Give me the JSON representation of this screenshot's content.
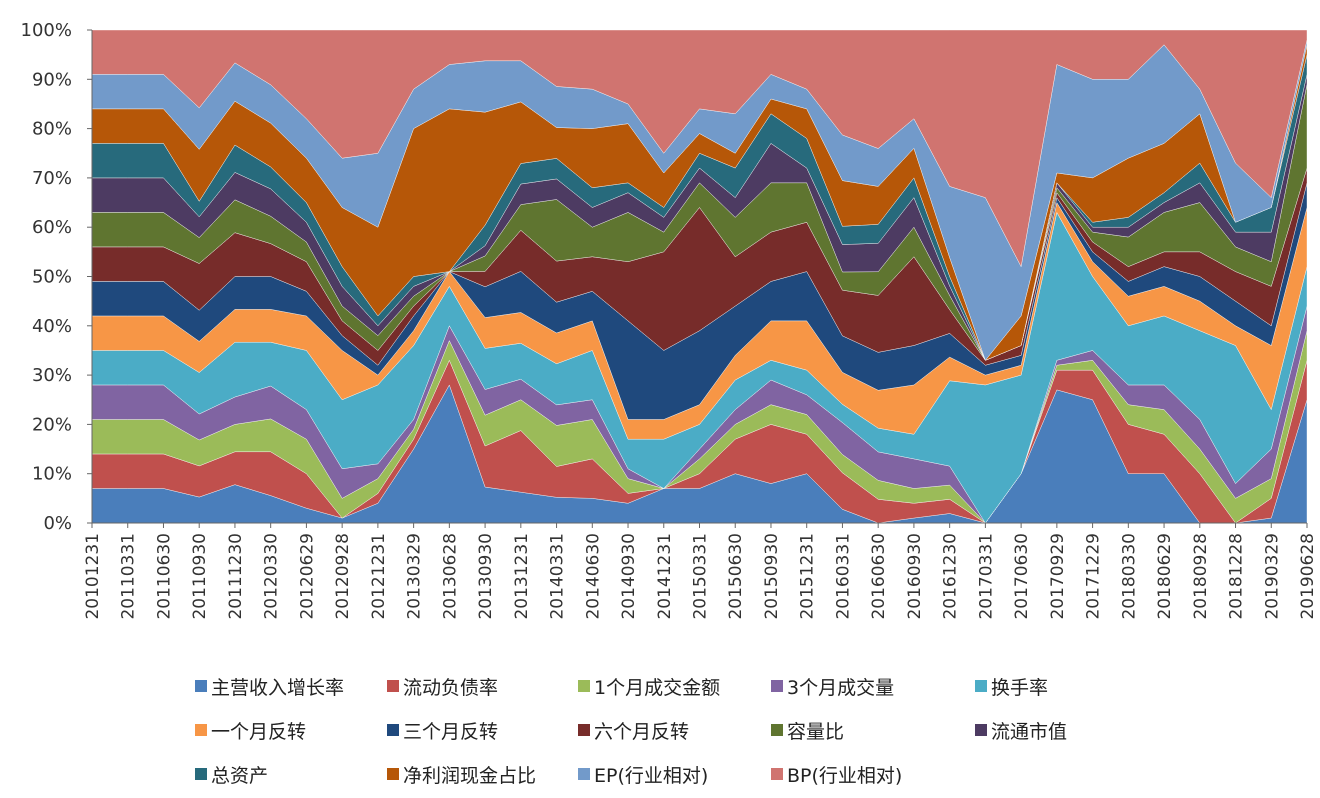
{
  "chart_data": {
    "type": "area",
    "stacked": true,
    "normalized": true,
    "title": "",
    "xlabel": "",
    "ylabel": "",
    "ylim": [
      0,
      100
    ],
    "yticks": [
      "0%",
      "10%",
      "20%",
      "30%",
      "40%",
      "50%",
      "60%",
      "70%",
      "80%",
      "90%",
      "100%"
    ],
    "x_tick_labels": [
      "20101231",
      "20110331",
      "20110630",
      "20110930",
      "20111230",
      "20120330",
      "20120629",
      "20120928",
      "20121231",
      "20130329",
      "20130628",
      "20130930",
      "20131231",
      "20140331",
      "20140630",
      "20140930",
      "20141231",
      "20150331",
      "20150630",
      "20150930",
      "20151231",
      "20160331",
      "20160630",
      "20160930",
      "20161230",
      "20170331",
      "20170630",
      "20170929",
      "20171229",
      "20180330",
      "20180629",
      "20180928",
      "20181228",
      "20190329",
      "20190628"
    ],
    "legend_position": "bottom",
    "x_index": [
      0,
      1,
      2,
      3,
      4,
      5,
      6,
      7,
      8,
      9,
      10,
      11,
      12,
      13,
      14,
      15,
      16,
      17,
      18,
      19,
      20,
      21,
      22,
      23,
      24,
      25,
      26,
      27,
      28,
      29,
      30,
      31,
      32,
      33,
      34
    ],
    "series": [
      {
        "name": "主营收入增长率",
        "color": "#4a7ebb",
        "values": [
          7,
          7,
          7,
          5,
          7,
          5,
          3,
          1,
          4,
          15,
          28,
          7,
          6,
          5,
          5,
          4,
          7,
          7,
          10,
          8,
          10,
          3,
          0,
          1,
          2,
          0,
          10,
          27,
          25,
          10,
          10,
          0,
          0,
          1,
          25
        ]
      },
      {
        "name": "流动负债率",
        "color": "#c0504d",
        "values": [
          7,
          7,
          7,
          6,
          6,
          8,
          7,
          0,
          2,
          2,
          5,
          8,
          12,
          6,
          8,
          2,
          0,
          3,
          7,
          12,
          8,
          8,
          5,
          3,
          3,
          0,
          0,
          4,
          6,
          10,
          8,
          10,
          0,
          4,
          8
        ]
      },
      {
        "name": "1个月成交金额",
        "color": "#9bbb59",
        "values": [
          7,
          7,
          7,
          5,
          5,
          6,
          7,
          4,
          3,
          2,
          4,
          6,
          6,
          8,
          8,
          3,
          0,
          3,
          3,
          4,
          4,
          4,
          4,
          3,
          3,
          0,
          0,
          1,
          2,
          4,
          5,
          5,
          5,
          4,
          6
        ]
      },
      {
        "name": "3个月成交量",
        "color": "#8064a2",
        "values": [
          7,
          7,
          7,
          5,
          5,
          6,
          6,
          6,
          3,
          2,
          3,
          5,
          4,
          4,
          4,
          2,
          0,
          2,
          3,
          5,
          4,
          7,
          6,
          6,
          4,
          0,
          0,
          1,
          2,
          4,
          5,
          6,
          3,
          6,
          5
        ]
      },
      {
        "name": "换手率",
        "color": "#4bacc6",
        "values": [
          7,
          7,
          7,
          8,
          10,
          8,
          12,
          14,
          16,
          15,
          8,
          8,
          7,
          8,
          10,
          6,
          10,
          5,
          6,
          4,
          5,
          4,
          5,
          5,
          18,
          28,
          20,
          30,
          15,
          12,
          14,
          18,
          28,
          8,
          8
        ]
      },
      {
        "name": "一个月反转",
        "color": "#f79646",
        "values": [
          7,
          7,
          7,
          6,
          6,
          6,
          7,
          10,
          2,
          3,
          3,
          6,
          6,
          6,
          6,
          4,
          4,
          4,
          5,
          8,
          10,
          7,
          8,
          10,
          5,
          2,
          2,
          2,
          3,
          6,
          6,
          6,
          4,
          13,
          12
        ]
      },
      {
        "name": "三个月反转",
        "color": "#1f497d",
        "values": [
          7,
          7,
          7,
          6,
          6,
          6,
          5,
          3,
          2,
          3,
          0,
          6,
          8,
          6,
          6,
          20,
          14,
          15,
          10,
          8,
          10,
          8,
          8,
          8,
          5,
          2,
          2,
          1,
          2,
          3,
          4,
          5,
          5,
          4,
          5
        ]
      },
      {
        "name": "六个月反转",
        "color": "#772c2a",
        "values": [
          7,
          7,
          7,
          9,
          8,
          6,
          6,
          3,
          3,
          2,
          0,
          3,
          8,
          8,
          7,
          12,
          20,
          25,
          10,
          10,
          10,
          10,
          12,
          18,
          5,
          1,
          2,
          1,
          2,
          3,
          3,
          5,
          6,
          8,
          3
        ]
      },
      {
        "name": "容量比",
        "color": "#5f7530",
        "values": [
          7,
          7,
          7,
          5,
          6,
          5,
          4,
          3,
          3,
          2,
          0,
          3,
          5,
          12,
          6,
          10,
          4,
          5,
          8,
          10,
          8,
          4,
          5,
          6,
          3,
          0,
          0,
          1,
          2,
          6,
          8,
          10,
          5,
          5,
          17
        ]
      },
      {
        "name": "流通市值",
        "color": "#4d3b62",
        "values": [
          7,
          7,
          7,
          4,
          5,
          5,
          4,
          4,
          2,
          2,
          0,
          2,
          4,
          4,
          4,
          4,
          3,
          3,
          4,
          8,
          3,
          6,
          6,
          6,
          2,
          0,
          0,
          1,
          1,
          2,
          2,
          4,
          3,
          6,
          2
        ]
      },
      {
        "name": "总资产",
        "color": "#276a7c",
        "values": [
          7,
          7,
          7,
          3,
          5,
          4,
          4,
          4,
          2,
          2,
          0,
          4,
          4,
          4,
          4,
          2,
          2,
          3,
          6,
          6,
          6,
          4,
          4,
          4,
          2,
          0,
          0,
          0,
          1,
          2,
          2,
          4,
          2,
          5,
          4
        ]
      },
      {
        "name": "净利润现金占比",
        "color": "#b65708",
        "values": [
          7,
          7,
          7,
          10,
          8,
          8,
          9,
          12,
          18,
          30,
          33,
          22,
          12,
          6,
          12,
          12,
          7,
          4,
          3,
          3,
          6,
          10,
          8,
          6,
          4,
          0,
          6,
          2,
          9,
          12,
          10,
          10,
          0,
          0,
          2
        ]
      },
      {
        "name": "EP(行业相对)",
        "color": "#729aca",
        "values": [
          7,
          7,
          7,
          8,
          7,
          7,
          8,
          10,
          15,
          8,
          9,
          10,
          8,
          8,
          8,
          4,
          4,
          5,
          8,
          5,
          4,
          10,
          8,
          6,
          15,
          33,
          10,
          22,
          20,
          16,
          20,
          5,
          12,
          2,
          1
        ]
      },
      {
        "name": "BP(行业相对)",
        "color": "#d07470",
        "values": [
          9,
          9,
          9,
          15,
          6,
          10,
          18,
          26,
          25,
          12,
          7,
          6,
          6,
          11,
          12,
          15,
          25,
          16,
          17,
          9,
          12,
          23,
          25,
          18,
          33,
          34,
          48,
          7,
          10,
          10,
          3,
          12,
          27,
          34,
          2
        ]
      }
    ]
  }
}
